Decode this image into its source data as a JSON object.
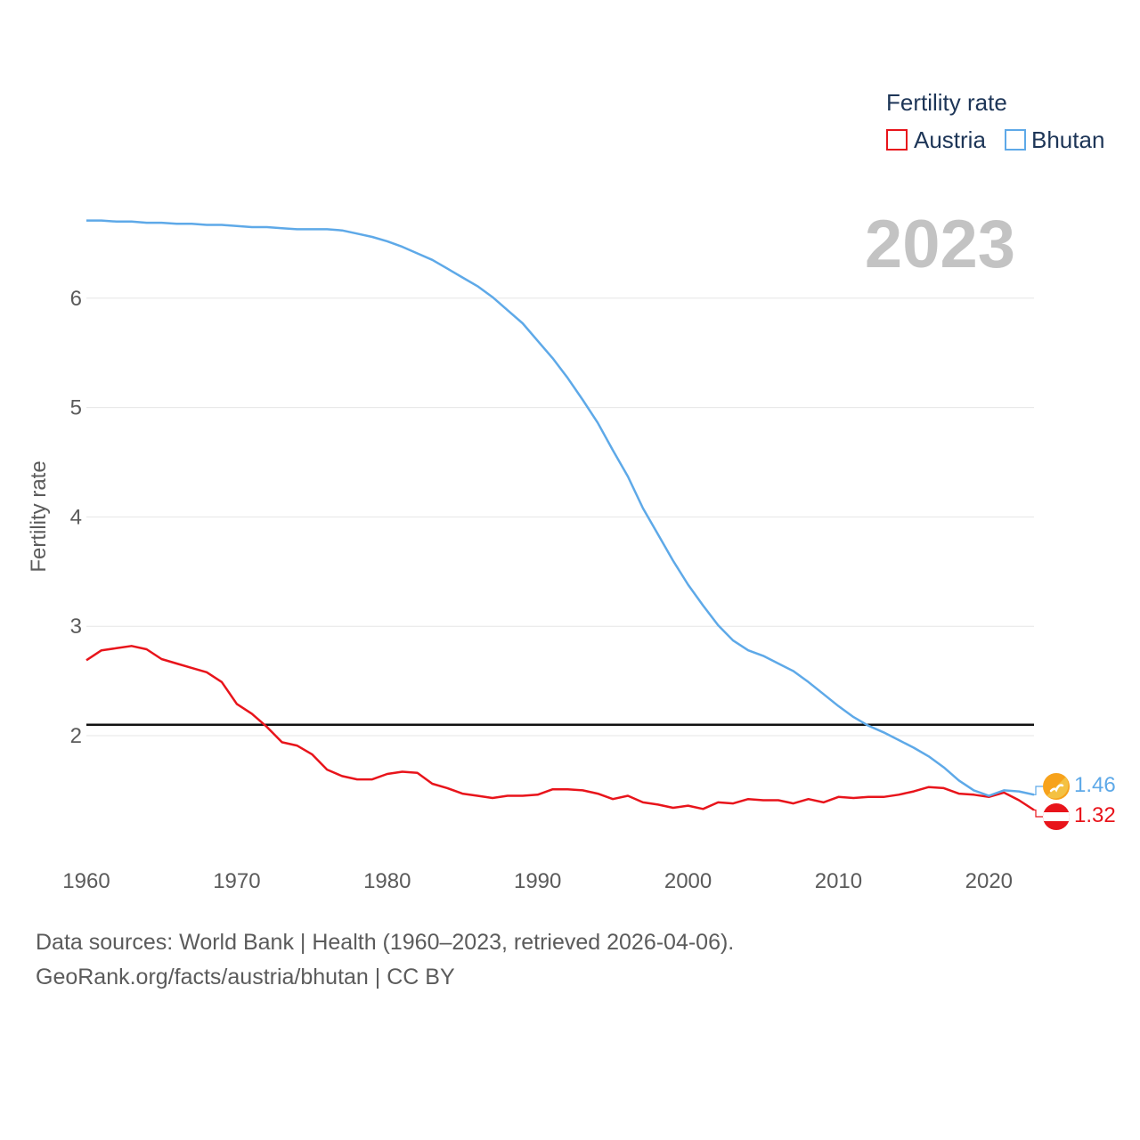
{
  "chart_data": {
    "type": "line",
    "year_label": "2023",
    "ylabel": "Fertility rate",
    "legend_title": "Fertility rate",
    "xlim": [
      1960,
      2023
    ],
    "ylim": [
      1.0,
      6.85
    ],
    "x_ticks": [
      1960,
      1970,
      1980,
      1990,
      2000,
      2010,
      2020
    ],
    "y_ticks": [
      2,
      3,
      4,
      5,
      6
    ],
    "reference_line": {
      "value": 2.1
    },
    "x": [
      1960,
      1961,
      1962,
      1963,
      1964,
      1965,
      1966,
      1967,
      1968,
      1969,
      1970,
      1971,
      1972,
      1973,
      1974,
      1975,
      1976,
      1977,
      1978,
      1979,
      1980,
      1981,
      1982,
      1983,
      1984,
      1985,
      1986,
      1987,
      1988,
      1989,
      1990,
      1991,
      1992,
      1993,
      1994,
      1995,
      1996,
      1997,
      1998,
      1999,
      2000,
      2001,
      2002,
      2003,
      2004,
      2005,
      2006,
      2007,
      2008,
      2009,
      2010,
      2011,
      2012,
      2013,
      2014,
      2015,
      2016,
      2017,
      2018,
      2019,
      2020,
      2021,
      2022,
      2023
    ],
    "series": [
      {
        "name": "Austria",
        "color": "#e8141b",
        "end_label": "1.32",
        "values": [
          2.69,
          2.78,
          2.8,
          2.82,
          2.79,
          2.7,
          2.66,
          2.62,
          2.58,
          2.49,
          2.29,
          2.2,
          2.08,
          1.94,
          1.91,
          1.83,
          1.69,
          1.63,
          1.6,
          1.6,
          1.65,
          1.67,
          1.66,
          1.56,
          1.52,
          1.47,
          1.45,
          1.43,
          1.45,
          1.45,
          1.46,
          1.51,
          1.51,
          1.5,
          1.47,
          1.42,
          1.45,
          1.39,
          1.37,
          1.34,
          1.36,
          1.33,
          1.39,
          1.38,
          1.42,
          1.41,
          1.41,
          1.38,
          1.42,
          1.39,
          1.44,
          1.43,
          1.44,
          1.44,
          1.46,
          1.49,
          1.53,
          1.52,
          1.47,
          1.46,
          1.44,
          1.48,
          1.41,
          1.32
        ]
      },
      {
        "name": "Bhutan",
        "color": "#5ea9e8",
        "end_label": "1.46",
        "values": [
          6.71,
          6.71,
          6.7,
          6.7,
          6.69,
          6.69,
          6.68,
          6.68,
          6.67,
          6.67,
          6.66,
          6.65,
          6.65,
          6.64,
          6.63,
          6.63,
          6.63,
          6.62,
          6.59,
          6.56,
          6.52,
          6.47,
          6.41,
          6.35,
          6.27,
          6.19,
          6.11,
          6.01,
          5.89,
          5.77,
          5.61,
          5.45,
          5.27,
          5.07,
          4.86,
          4.61,
          4.37,
          4.08,
          3.84,
          3.6,
          3.38,
          3.19,
          3.01,
          2.87,
          2.78,
          2.73,
          2.66,
          2.59,
          2.49,
          2.38,
          2.27,
          2.17,
          2.09,
          2.03,
          1.96,
          1.89,
          1.81,
          1.71,
          1.59,
          1.5,
          1.45,
          1.5,
          1.49,
          1.46
        ]
      }
    ]
  },
  "source": {
    "line1": "Data sources: World Bank | Health (1960–2023, retrieved 2026-04-06).",
    "line2": "GeoRank.org/facts/austria/bhutan | CC BY"
  }
}
